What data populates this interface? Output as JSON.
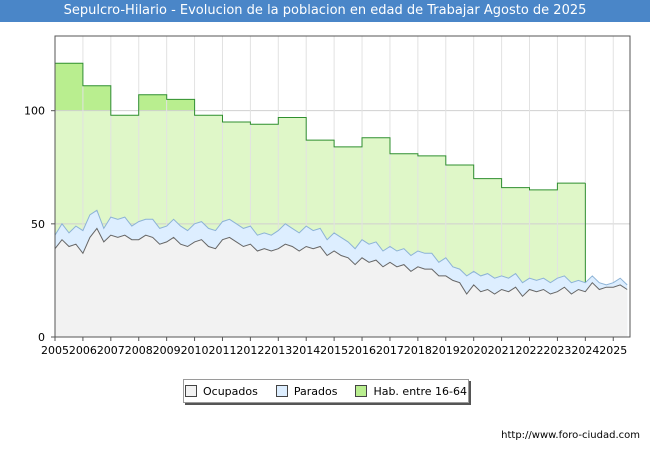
{
  "title": "Sepulcro-Hilario - Evolucion de la poblacion en edad de Trabajar Agosto de 2025",
  "source": "http://www.foro-ciudad.com",
  "colors": {
    "title_bg": "#4a86c8",
    "ocupados_fill": "#f2f2f2",
    "ocupados_line": "#666666",
    "parados_fill": "#ddeeff",
    "parados_line": "#8db3d6",
    "hab_fill": "#dff7c8",
    "hab_fill_top": "#b9ee8f",
    "hab_line": "#2f8f2f"
  },
  "chart_data": {
    "type": "area",
    "title": "Sepulcro-Hilario - Evolucion de la poblacion en edad de Trabajar Agosto de 2025",
    "xlabel": "",
    "ylabel": "",
    "x_ticks": [
      "2005",
      "2006",
      "2007",
      "2008",
      "2009",
      "2010",
      "2011",
      "2012",
      "2013",
      "2014",
      "2015",
      "2016",
      "2017",
      "2018",
      "2019",
      "2020",
      "2021",
      "2022",
      "2023",
      "2024",
      "2025"
    ],
    "y_ticks": [
      0,
      50,
      100
    ],
    "xlim": [
      2005,
      2025.6
    ],
    "ylim": [
      0,
      133
    ],
    "grid": true,
    "legend_position": "bottom",
    "series": [
      {
        "name": "Hab. entre 16-64",
        "kind": "step",
        "x": [
          2005,
          2006,
          2007,
          2008,
          2009,
          2010,
          2011,
          2012,
          2013,
          2014,
          2015,
          2016,
          2017,
          2018,
          2019,
          2020,
          2021,
          2022,
          2023
        ],
        "values": [
          121,
          111,
          98,
          107,
          105,
          98,
          95,
          94,
          97,
          87,
          84,
          88,
          81,
          80,
          76,
          70,
          66,
          65,
          68
        ]
      },
      {
        "name": "Parados",
        "kind": "line",
        "x": [
          2005.0,
          2005.25,
          2005.5,
          2005.75,
          2006.0,
          2006.25,
          2006.5,
          2006.75,
          2007.0,
          2007.25,
          2007.5,
          2007.75,
          2008.0,
          2008.25,
          2008.5,
          2008.75,
          2009.0,
          2009.25,
          2009.5,
          2009.75,
          2010.0,
          2010.25,
          2010.5,
          2010.75,
          2011.0,
          2011.25,
          2011.5,
          2011.75,
          2012.0,
          2012.25,
          2012.5,
          2012.75,
          2013.0,
          2013.25,
          2013.5,
          2013.75,
          2014.0,
          2014.25,
          2014.5,
          2014.75,
          2015.0,
          2015.25,
          2015.5,
          2015.75,
          2016.0,
          2016.25,
          2016.5,
          2016.75,
          2017.0,
          2017.25,
          2017.5,
          2017.75,
          2018.0,
          2018.25,
          2018.5,
          2018.75,
          2019.0,
          2019.25,
          2019.5,
          2019.75,
          2020.0,
          2020.25,
          2020.5,
          2020.75,
          2021.0,
          2021.25,
          2021.5,
          2021.75,
          2022.0,
          2022.25,
          2022.5,
          2022.75,
          2023.0,
          2023.25,
          2023.5,
          2023.75,
          2024.0,
          2024.25,
          2024.5,
          2024.75,
          2025.0,
          2025.25,
          2025.5
        ],
        "values": [
          45,
          50,
          46,
          49,
          47,
          54,
          56,
          48,
          53,
          52,
          53,
          49,
          51,
          52,
          52,
          48,
          49,
          52,
          49,
          47,
          50,
          51,
          48,
          47,
          51,
          52,
          50,
          48,
          49,
          45,
          46,
          45,
          47,
          50,
          48,
          46,
          49,
          47,
          48,
          43,
          46,
          44,
          42,
          39,
          43,
          41,
          42,
          38,
          40,
          38,
          39,
          36,
          38,
          37,
          37,
          33,
          35,
          31,
          30,
          27,
          29,
          27,
          28,
          26,
          27,
          26,
          28,
          24,
          26,
          25,
          26,
          24,
          26,
          27,
          24,
          25,
          24,
          27,
          24,
          23,
          24,
          26,
          23
        ]
      },
      {
        "name": "Ocupados",
        "kind": "line",
        "x": [
          2005.0,
          2005.25,
          2005.5,
          2005.75,
          2006.0,
          2006.25,
          2006.5,
          2006.75,
          2007.0,
          2007.25,
          2007.5,
          2007.75,
          2008.0,
          2008.25,
          2008.5,
          2008.75,
          2009.0,
          2009.25,
          2009.5,
          2009.75,
          2010.0,
          2010.25,
          2010.5,
          2010.75,
          2011.0,
          2011.25,
          2011.5,
          2011.75,
          2012.0,
          2012.25,
          2012.5,
          2012.75,
          2013.0,
          2013.25,
          2013.5,
          2013.75,
          2014.0,
          2014.25,
          2014.5,
          2014.75,
          2015.0,
          2015.25,
          2015.5,
          2015.75,
          2016.0,
          2016.25,
          2016.5,
          2016.75,
          2017.0,
          2017.25,
          2017.5,
          2017.75,
          2018.0,
          2018.25,
          2018.5,
          2018.75,
          2019.0,
          2019.25,
          2019.5,
          2019.75,
          2020.0,
          2020.25,
          2020.5,
          2020.75,
          2021.0,
          2021.25,
          2021.5,
          2021.75,
          2022.0,
          2022.25,
          2022.5,
          2022.75,
          2023.0,
          2023.25,
          2023.5,
          2023.75,
          2024.0,
          2024.25,
          2024.5,
          2024.75,
          2025.0,
          2025.25,
          2025.5
        ],
        "values": [
          39,
          43,
          40,
          41,
          37,
          44,
          48,
          42,
          45,
          44,
          45,
          43,
          43,
          45,
          44,
          41,
          42,
          44,
          41,
          40,
          42,
          43,
          40,
          39,
          43,
          44,
          42,
          40,
          41,
          38,
          39,
          38,
          39,
          41,
          40,
          38,
          40,
          39,
          40,
          36,
          38,
          36,
          35,
          32,
          35,
          33,
          34,
          31,
          33,
          31,
          32,
          29,
          31,
          30,
          30,
          27,
          27,
          25,
          24,
          19,
          23,
          20,
          21,
          19,
          21,
          20,
          22,
          18,
          21,
          20,
          21,
          19,
          20,
          22,
          19,
          21,
          20,
          24,
          21,
          22,
          22,
          23,
          21
        ]
      }
    ]
  },
  "legend": {
    "items": [
      {
        "label": "Ocupados",
        "key": "ocupados"
      },
      {
        "label": "Parados",
        "key": "parados"
      },
      {
        "label": "Hab. entre 16-64",
        "key": "hab"
      }
    ]
  }
}
